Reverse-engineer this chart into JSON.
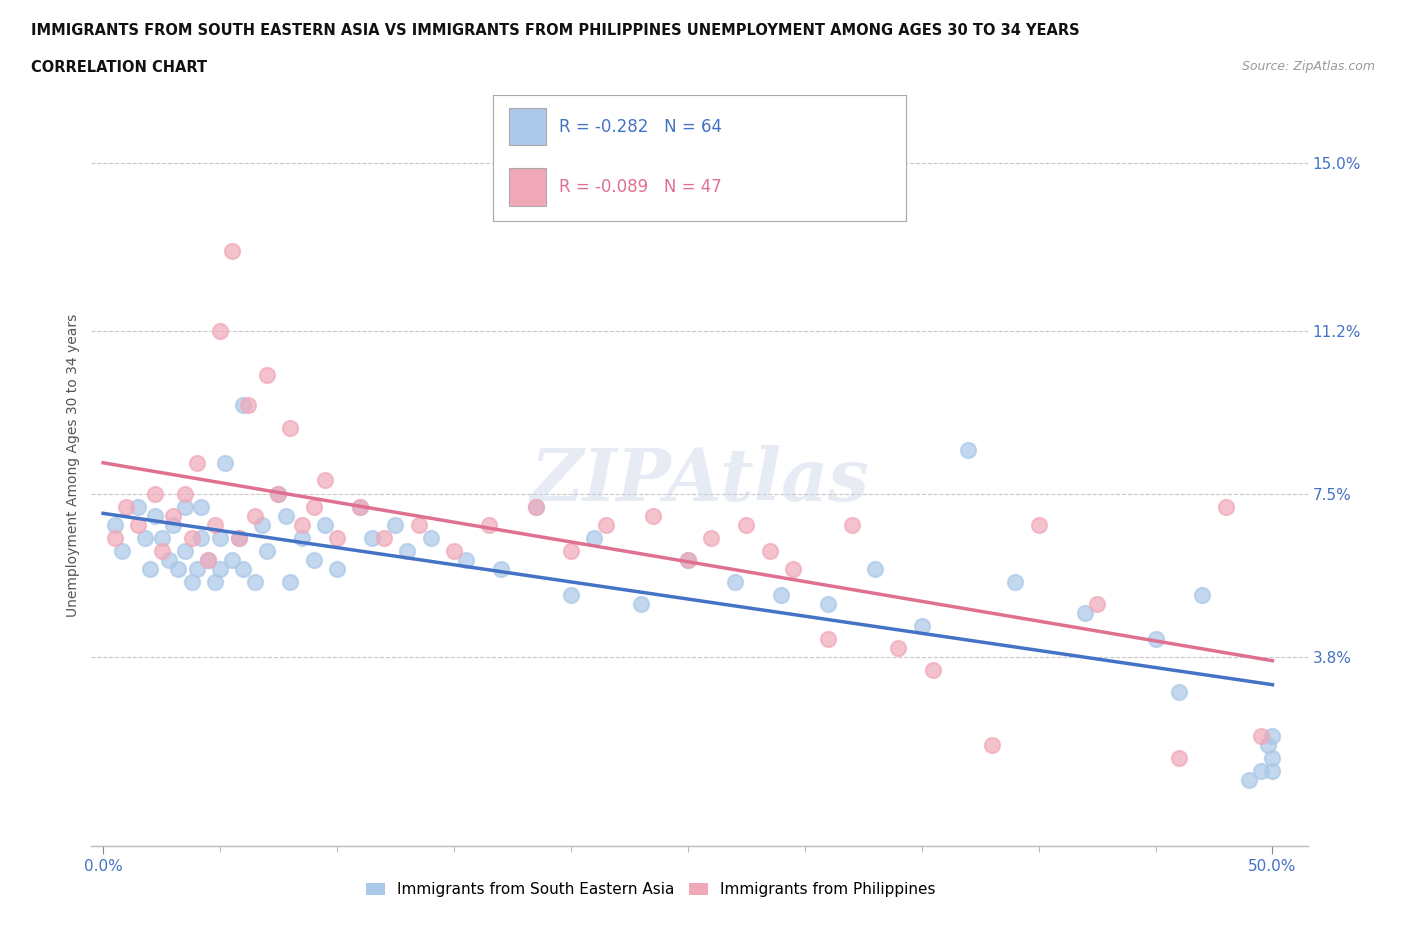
{
  "title_line1": "IMMIGRANTS FROM SOUTH EASTERN ASIA VS IMMIGRANTS FROM PHILIPPINES UNEMPLOYMENT AMONG AGES 30 TO 34 YEARS",
  "title_line2": "CORRELATION CHART",
  "source_text": "Source: ZipAtlas.com",
  "ylabel": "Unemployment Among Ages 30 to 34 years",
  "xlim": [
    -0.005,
    0.515
  ],
  "ylim": [
    -0.005,
    0.168
  ],
  "xtick_labels": [
    "0.0%",
    "50.0%"
  ],
  "xtick_positions": [
    0.0,
    0.5
  ],
  "xtick_minor_positions": [
    0.05,
    0.1,
    0.15,
    0.2,
    0.25,
    0.3,
    0.35,
    0.4,
    0.45
  ],
  "ytick_labels": [
    "15.0%",
    "11.2%",
    "7.5%",
    "3.8%"
  ],
  "ytick_positions": [
    0.15,
    0.112,
    0.075,
    0.038
  ],
  "grid_color": "#c8c8c8",
  "background_color": "#ffffff",
  "watermark_text": "ZIPAtlas",
  "legend_r1": "R = -0.282",
  "legend_n1": "N = 64",
  "legend_r2": "R = -0.089",
  "legend_n2": "N = 47",
  "color_sea": "#aac8e8",
  "color_phi": "#f0a8b8",
  "line_color_sea": "#4472c4",
  "line_color_phi": "#e07090",
  "label_sea": "Immigrants from South Eastern Asia",
  "label_phi": "Immigrants from Philippines",
  "sea_x": [
    0.005,
    0.008,
    0.015,
    0.018,
    0.02,
    0.022,
    0.025,
    0.028,
    0.03,
    0.032,
    0.035,
    0.035,
    0.038,
    0.04,
    0.042,
    0.042,
    0.045,
    0.048,
    0.05,
    0.05,
    0.052,
    0.055,
    0.058,
    0.06,
    0.06,
    0.065,
    0.068,
    0.07,
    0.075,
    0.078,
    0.08,
    0.085,
    0.09,
    0.095,
    0.1,
    0.11,
    0.115,
    0.125,
    0.13,
    0.14,
    0.155,
    0.17,
    0.185,
    0.2,
    0.21,
    0.23,
    0.25,
    0.27,
    0.29,
    0.31,
    0.33,
    0.35,
    0.37,
    0.39,
    0.42,
    0.45,
    0.46,
    0.47,
    0.49,
    0.495,
    0.498,
    0.5,
    0.5,
    0.5
  ],
  "sea_y": [
    0.068,
    0.062,
    0.072,
    0.065,
    0.058,
    0.07,
    0.065,
    0.06,
    0.068,
    0.058,
    0.062,
    0.072,
    0.055,
    0.058,
    0.065,
    0.072,
    0.06,
    0.055,
    0.058,
    0.065,
    0.082,
    0.06,
    0.065,
    0.095,
    0.058,
    0.055,
    0.068,
    0.062,
    0.075,
    0.07,
    0.055,
    0.065,
    0.06,
    0.068,
    0.058,
    0.072,
    0.065,
    0.068,
    0.062,
    0.065,
    0.06,
    0.058,
    0.072,
    0.052,
    0.065,
    0.05,
    0.06,
    0.055,
    0.052,
    0.05,
    0.058,
    0.045,
    0.085,
    0.055,
    0.048,
    0.042,
    0.03,
    0.052,
    0.01,
    0.012,
    0.018,
    0.012,
    0.015,
    0.02
  ],
  "phi_x": [
    0.005,
    0.01,
    0.015,
    0.022,
    0.025,
    0.03,
    0.035,
    0.038,
    0.04,
    0.045,
    0.048,
    0.05,
    0.055,
    0.058,
    0.062,
    0.065,
    0.07,
    0.075,
    0.08,
    0.085,
    0.09,
    0.095,
    0.1,
    0.11,
    0.12,
    0.135,
    0.15,
    0.165,
    0.185,
    0.2,
    0.215,
    0.235,
    0.25,
    0.26,
    0.275,
    0.285,
    0.295,
    0.31,
    0.32,
    0.34,
    0.355,
    0.38,
    0.4,
    0.425,
    0.46,
    0.48,
    0.495
  ],
  "phi_y": [
    0.065,
    0.072,
    0.068,
    0.075,
    0.062,
    0.07,
    0.075,
    0.065,
    0.082,
    0.06,
    0.068,
    0.112,
    0.13,
    0.065,
    0.095,
    0.07,
    0.102,
    0.075,
    0.09,
    0.068,
    0.072,
    0.078,
    0.065,
    0.072,
    0.065,
    0.068,
    0.062,
    0.068,
    0.072,
    0.062,
    0.068,
    0.07,
    0.06,
    0.065,
    0.068,
    0.062,
    0.058,
    0.042,
    0.068,
    0.04,
    0.035,
    0.018,
    0.068,
    0.05,
    0.015,
    0.072,
    0.02
  ],
  "title_fontsize": 10.5,
  "source_fontsize": 9,
  "axis_label_fontsize": 10,
  "tick_fontsize": 11,
  "legend_fontsize": 12,
  "watermark_fontsize": 52
}
